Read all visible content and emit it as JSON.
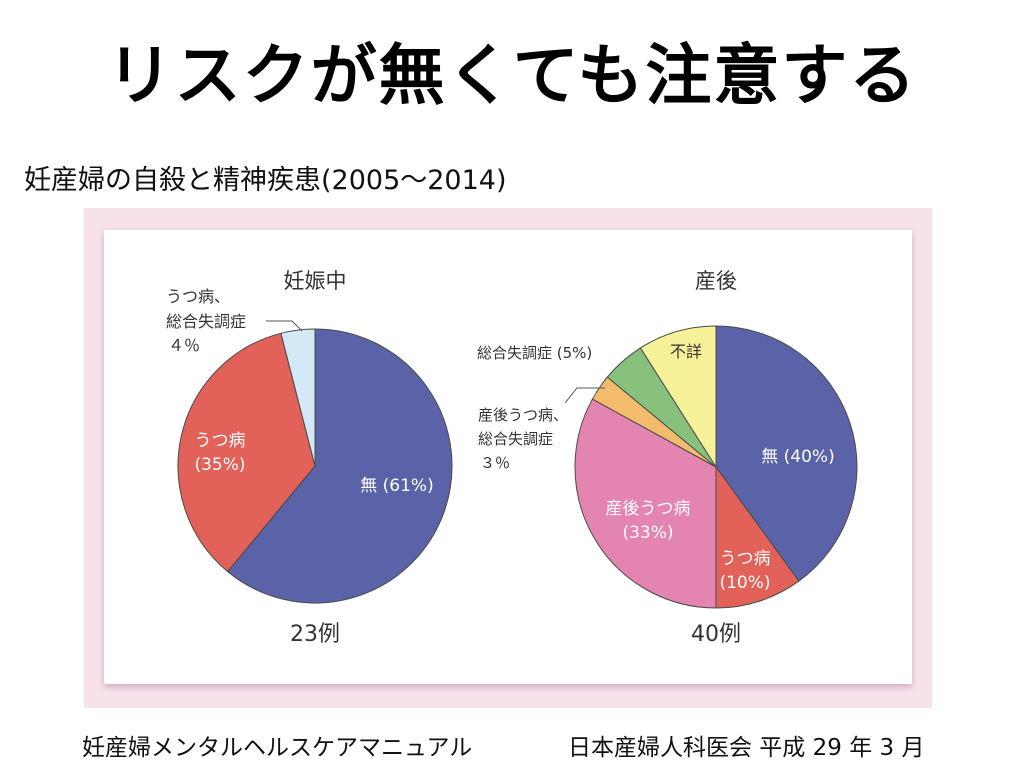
{
  "title": "リスクが無くても注意する",
  "subtitle": "妊産婦の自殺と精神疾患(2005～2014)",
  "footer": {
    "source": "妊産婦メンタルヘルスケアマニュアル",
    "publisher": "日本産婦人科医会 平成 29 年 3 月"
  },
  "chart_data": [
    {
      "type": "pie",
      "title": "妊娠中",
      "total_label": "23例",
      "slices": [
        {
          "label": "無 (61%)",
          "name": "無",
          "value": 61,
          "color": "#5a63a8"
        },
        {
          "label": "うつ病 (35%)",
          "name": "うつ病",
          "value": 35,
          "color": "#e2625a"
        },
        {
          "label": "うつ病、総合失調症 4％",
          "name": "うつ病、総合失調症",
          "value": 4,
          "color": "#d3e9f6"
        }
      ],
      "text": {
        "s0": "無 (61%)",
        "s1_line1": "うつ病",
        "s1_line2": "(35%)",
        "s2_line1": "うつ病、",
        "s2_line2": "総合失調症",
        "s2_line3": "４％"
      }
    },
    {
      "type": "pie",
      "title": "産後",
      "total_label": "40例",
      "slices": [
        {
          "label": "無 (40%)",
          "name": "無",
          "value": 40,
          "color": "#5a63a8"
        },
        {
          "label": "うつ病 (10%)",
          "name": "うつ病",
          "value": 10,
          "color": "#e2625a"
        },
        {
          "label": "産後うつ病 (33%)",
          "name": "産後うつ病",
          "value": 33,
          "color": "#e385b0"
        },
        {
          "label": "産後うつ病、総合失調症 3％",
          "name": "産後うつ病、総合失調症",
          "value": 3,
          "color": "#f3bb6c"
        },
        {
          "label": "総合失調症 (5%)",
          "name": "総合失調症",
          "value": 5,
          "color": "#88c07e"
        },
        {
          "label": "不詳",
          "name": "不詳",
          "value": 9,
          "color": "#f7f19a"
        }
      ],
      "text": {
        "s0": "無 (40%)",
        "s1_line1": "うつ病",
        "s1_line2": "(10%)",
        "s2_line1": "産後うつ病",
        "s2_line2": "(33%)",
        "s3_line1": "産後うつ病、",
        "s3_line2": "総合失調症",
        "s3_line3": "３％",
        "s4": "総合失調症 (5%)",
        "s5": "不詳"
      }
    }
  ]
}
